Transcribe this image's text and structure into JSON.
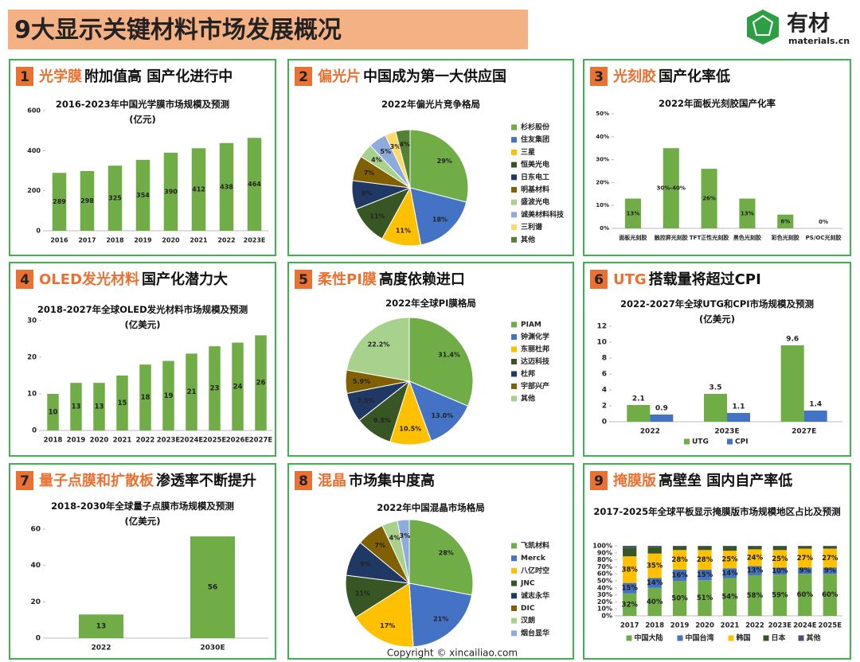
{
  "header": {
    "title": "9大显示关键材料市场发展概况",
    "logo_text": "有材",
    "logo_domain": "materials.cn"
  },
  "footer": "Copyright © xincailiao.com",
  "chart_data": [
    {
      "type": "bar",
      "number": "1",
      "heading_highlight": "光学膜",
      "heading": "附加值高 国产化进行中",
      "title": "2016-2023年中国光学膜市场规模及预测",
      "subtitle": "(亿元)",
      "categories": [
        "2016",
        "2017",
        "2018",
        "2019",
        "2020",
        "2021",
        "2022",
        "2023E"
      ],
      "values": [
        289,
        298,
        325,
        354,
        390,
        412,
        438,
        464
      ],
      "color": "#70ad47",
      "ylim": [
        0,
        600
      ],
      "yticks": [
        0,
        200,
        400,
        600
      ]
    },
    {
      "type": "pie",
      "number": "2",
      "heading_highlight": "偏光片",
      "heading": "中国成为第一大供应国",
      "title": "2022年偏光片竞争格局",
      "categories": [
        "杉杉股份",
        "住友集团",
        "三星",
        "恒美光电",
        "日东电工",
        "明基材料",
        "盛波光电",
        "诚美材料科技",
        "三利谱",
        "其他"
      ],
      "values": [
        29,
        18,
        11,
        11,
        8,
        7,
        4,
        5,
        3,
        4
      ],
      "value_labels": [
        "29%",
        "18%",
        "11%",
        "11%",
        "8%",
        "7%",
        "4%",
        "5%",
        "3%",
        "4%"
      ],
      "colors": [
        "#70ad47",
        "#4472c4",
        "#ffc000",
        "#375623",
        "#203864",
        "#806000",
        "#a9d18e",
        "#8faadc",
        "#ffd966",
        "#548235"
      ]
    },
    {
      "type": "bar",
      "number": "3",
      "heading_highlight": "光刻胶",
      "heading": "国产化率低",
      "title": "2022年面板光刻胶国产化率",
      "categories": [
        "面板光刻胶",
        "触控屏光刻胶",
        "TFT正性光刻胶",
        "黑色光刻胶",
        "彩色光刻胶",
        "PS/OC光刻胶"
      ],
      "values": [
        13,
        35,
        26,
        13,
        6,
        0
      ],
      "value_labels": [
        "13%",
        "30%-40%",
        "26%",
        "13%",
        "6%",
        "0%"
      ],
      "color": "#70ad47",
      "ylim": [
        0,
        50
      ],
      "yticks": [
        {
          "value": 0,
          "label": "0%"
        },
        {
          "value": 10,
          "label": "10%"
        },
        {
          "value": 20,
          "label": "20%"
        },
        {
          "value": 30,
          "label": "30%"
        },
        {
          "value": 40,
          "label": "40%"
        },
        {
          "value": 50,
          "label": "50%"
        }
      ]
    },
    {
      "type": "bar",
      "number": "4",
      "heading_highlight": "OLED发光材料",
      "heading": "国产化潜力大",
      "title": "2018-2027年全球OLED发光材料市场规模及预测",
      "subtitle": "(亿美元)",
      "categories": [
        "2018",
        "2019",
        "2020",
        "2021",
        "2022",
        "2023E",
        "2024E",
        "2025E",
        "2026E",
        "2027E"
      ],
      "values": [
        10,
        13,
        13,
        15,
        18,
        19,
        21,
        23,
        24,
        26
      ],
      "color": "#70ad47",
      "ylim": [
        0,
        30
      ],
      "yticks": [
        0,
        10,
        20,
        30
      ]
    },
    {
      "type": "pie",
      "number": "5",
      "heading_highlight": "柔性PI膜",
      "heading": "高度依赖进口",
      "title": "2022年全球PI膜格局",
      "categories": [
        "PIAM",
        "钟渊化学",
        "东丽杜邦",
        "达迈科技",
        "杜邦",
        "宇部兴产",
        "其他"
      ],
      "values": [
        31.4,
        13.0,
        10.5,
        9.5,
        7.5,
        5.9,
        22.2
      ],
      "value_labels": [
        "31.4%",
        "13.0%",
        "10.5%",
        "9.5%",
        "7.5%",
        "5.9%",
        "22.2%"
      ],
      "colors": [
        "#70ad47",
        "#4472c4",
        "#ffc000",
        "#375623",
        "#203864",
        "#806000",
        "#a9d18e"
      ]
    },
    {
      "type": "grouped_bar",
      "number": "6",
      "heading_highlight": "UTG",
      "heading": "搭载量将超过CPI",
      "title": "2022-2027年全球UTG和CPI市场规模及预测",
      "subtitle": "(亿美元)",
      "categories": [
        "2022",
        "2023E",
        "2027E"
      ],
      "series": [
        {
          "name": "UTG",
          "color": "#70ad47",
          "values": [
            2.1,
            3.5,
            9.6
          ]
        },
        {
          "name": "CPI",
          "color": "#4472c4",
          "values": [
            0.9,
            1.1,
            1.4
          ]
        }
      ],
      "ylim": [
        0,
        12
      ],
      "yticks": [
        0,
        2,
        4,
        6,
        8,
        10,
        12
      ]
    },
    {
      "type": "bar",
      "number": "7",
      "heading_highlight": "量子点膜和扩散板",
      "heading": "渗透率不断提升",
      "title": "2018-2030年全球量子点膜市场规模及预测",
      "subtitle": "(亿美元)",
      "categories": [
        "2022",
        "2030E"
      ],
      "values": [
        13,
        56
      ],
      "color": "#70ad47",
      "ylim": [
        0,
        60
      ],
      "yticks": [
        0,
        20,
        40,
        60
      ]
    },
    {
      "type": "pie",
      "number": "8",
      "heading_highlight": "混晶",
      "heading": "市场集中度高",
      "title": "2022年中国混晶市场格局",
      "categories": [
        "飞凯材料",
        "Merck",
        "八亿时空",
        "JNC",
        "诚志永华",
        "DIC",
        "汉朗",
        "烟台显华"
      ],
      "values": [
        28,
        21,
        17,
        11,
        9,
        7,
        4,
        3
      ],
      "value_labels": [
        "28%",
        "21%",
        "17%",
        "11%",
        "9%",
        "7%",
        "4%",
        "3%"
      ],
      "colors": [
        "#70ad47",
        "#4472c4",
        "#ffc000",
        "#375623",
        "#203864",
        "#806000",
        "#a9d18e",
        "#8faadc"
      ]
    },
    {
      "type": "stacked_bar",
      "number": "9",
      "heading_highlight": "掩膜版",
      "heading": "高壁垒 国内自产率低",
      "title": "2017-2025年全球平板显示掩膜版市场规模地区占比及预测",
      "categories": [
        "2017",
        "2018",
        "2019",
        "2020",
        "2021",
        "2022",
        "2023E",
        "2024E",
        "2025E"
      ],
      "series": [
        {
          "name": "中国大陆",
          "color": "#70ad47",
          "values": [
            32,
            40,
            50,
            51,
            54,
            58,
            59,
            60,
            60
          ],
          "value_labels": [
            "32%",
            "40%",
            "50%",
            "51%",
            "54%",
            "58%",
            "59%",
            "60%",
            "60%"
          ]
        },
        {
          "name": "中国台湾",
          "color": "#4472c4",
          "values": [
            15,
            14,
            16,
            15,
            14,
            13,
            10,
            9,
            9
          ],
          "value_labels": [
            "15%",
            "14%",
            "16%",
            "15%",
            "14%",
            "13%",
            "10%",
            "9%",
            "9%"
          ]
        },
        {
          "name": "韩国",
          "color": "#ffc000",
          "values": [
            38,
            35,
            28,
            28,
            25,
            24,
            25,
            27,
            27
          ],
          "value_labels": [
            "38%",
            "35%",
            "28%",
            "28%",
            "25%",
            "24%",
            "25%",
            "27%",
            "27%"
          ]
        },
        {
          "name": "日本",
          "color": "#375623",
          "values": [
            12,
            9,
            5,
            5,
            6,
            4,
            5,
            3,
            3
          ]
        },
        {
          "name": "其他",
          "color": "#44546a",
          "values": [
            3,
            2,
            1,
            1,
            1,
            1,
            1,
            1,
            1
          ]
        }
      ],
      "ylim": [
        0,
        100
      ],
      "yticks": [
        {
          "value": 0,
          "label": "0%"
        },
        {
          "value": 10,
          "label": "10%"
        },
        {
          "value": 20,
          "label": "20%"
        },
        {
          "value": 30,
          "label": "30%"
        },
        {
          "value": 40,
          "label": "40%"
        },
        {
          "value": 50,
          "label": "50%"
        },
        {
          "value": 60,
          "label": "60%"
        },
        {
          "value": 70,
          "label": "70%"
        },
        {
          "value": 80,
          "label": "80%"
        },
        {
          "value": 90,
          "label": "90%"
        },
        {
          "value": 100,
          "label": "100%"
        }
      ]
    }
  ]
}
